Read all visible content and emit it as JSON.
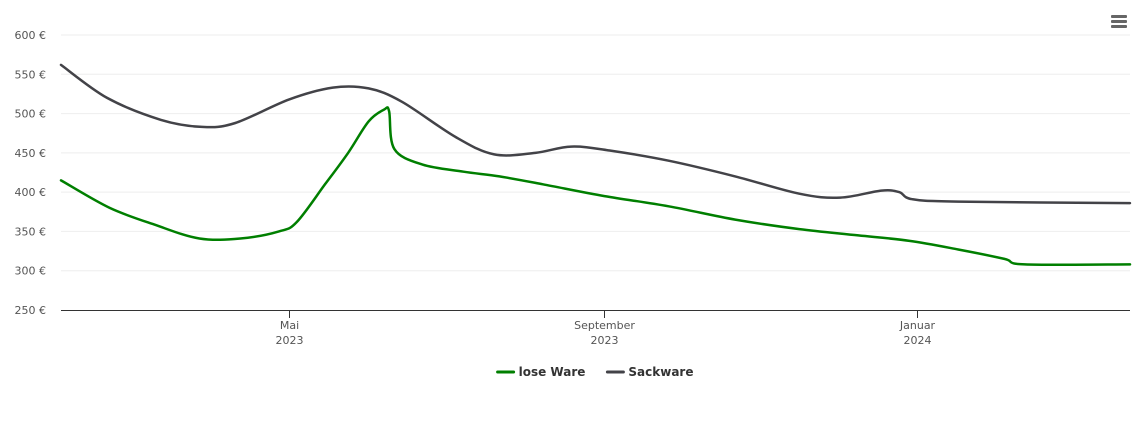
{
  "chart_data": {
    "type": "line",
    "title": "",
    "xlabel": "",
    "ylabel": "",
    "ylim": [
      250,
      600
    ],
    "y_ticks": [
      250,
      300,
      350,
      400,
      450,
      500,
      550,
      600
    ],
    "y_tick_format": "{v} €",
    "xlim": [
      "2023-02-01",
      "2024-03-24"
    ],
    "x_ticks": [
      {
        "date": "2023-05-01",
        "month": "Mai",
        "year": "2023"
      },
      {
        "date": "2023-09-01",
        "month": "September",
        "year": "2023"
      },
      {
        "date": "2024-01-01",
        "month": "Januar",
        "year": "2024"
      }
    ],
    "grid": true,
    "legend_position": "bottom-center",
    "series": [
      {
        "name": "lose Ware",
        "color": "#007f00",
        "points": [
          {
            "x": "2023-02-01",
            "y": 415
          },
          {
            "x": "2023-02-20",
            "y": 380
          },
          {
            "x": "2023-03-10",
            "y": 358
          },
          {
            "x": "2023-03-27",
            "y": 341
          },
          {
            "x": "2023-04-12",
            "y": 341
          },
          {
            "x": "2023-04-27",
            "y": 350
          },
          {
            "x": "2023-05-04",
            "y": 362
          },
          {
            "x": "2023-05-15",
            "y": 410
          },
          {
            "x": "2023-05-24",
            "y": 450
          },
          {
            "x": "2023-06-01",
            "y": 490
          },
          {
            "x": "2023-06-07",
            "y": 505
          },
          {
            "x": "2023-06-09",
            "y": 503
          },
          {
            "x": "2023-06-11",
            "y": 455
          },
          {
            "x": "2023-06-22",
            "y": 435
          },
          {
            "x": "2023-07-08",
            "y": 426
          },
          {
            "x": "2023-07-22",
            "y": 420
          },
          {
            "x": "2023-08-08",
            "y": 410
          },
          {
            "x": "2023-09-01",
            "y": 395
          },
          {
            "x": "2023-09-26",
            "y": 382
          },
          {
            "x": "2023-10-22",
            "y": 365
          },
          {
            "x": "2023-11-16",
            "y": 353
          },
          {
            "x": "2023-12-09",
            "y": 345
          },
          {
            "x": "2023-12-29",
            "y": 338
          },
          {
            "x": "2024-01-17",
            "y": 327
          },
          {
            "x": "2024-02-04",
            "y": 315
          },
          {
            "x": "2024-02-12",
            "y": 308
          },
          {
            "x": "2024-03-24",
            "y": 308
          }
        ]
      },
      {
        "name": "Sackware",
        "color": "#434348",
        "points": [
          {
            "x": "2023-02-01",
            "y": 562
          },
          {
            "x": "2023-02-19",
            "y": 520
          },
          {
            "x": "2023-03-12",
            "y": 492
          },
          {
            "x": "2023-03-28",
            "y": 483
          },
          {
            "x": "2023-04-10",
            "y": 488
          },
          {
            "x": "2023-05-01",
            "y": 518
          },
          {
            "x": "2023-05-18",
            "y": 533
          },
          {
            "x": "2023-06-01",
            "y": 532
          },
          {
            "x": "2023-06-14",
            "y": 515
          },
          {
            "x": "2023-07-05",
            "y": 470
          },
          {
            "x": "2023-07-20",
            "y": 448
          },
          {
            "x": "2023-08-05",
            "y": 450
          },
          {
            "x": "2023-08-19",
            "y": 458
          },
          {
            "x": "2023-09-03",
            "y": 453
          },
          {
            "x": "2023-09-26",
            "y": 440
          },
          {
            "x": "2023-10-22",
            "y": 420
          },
          {
            "x": "2023-11-16",
            "y": 398
          },
          {
            "x": "2023-12-02",
            "y": 393
          },
          {
            "x": "2023-12-18",
            "y": 402
          },
          {
            "x": "2023-12-25",
            "y": 400
          },
          {
            "x": "2023-12-30",
            "y": 391
          },
          {
            "x": "2024-01-17",
            "y": 388
          },
          {
            "x": "2024-03-24",
            "y": 386
          }
        ]
      }
    ]
  },
  "menu_icon": "hamburger-menu-icon"
}
